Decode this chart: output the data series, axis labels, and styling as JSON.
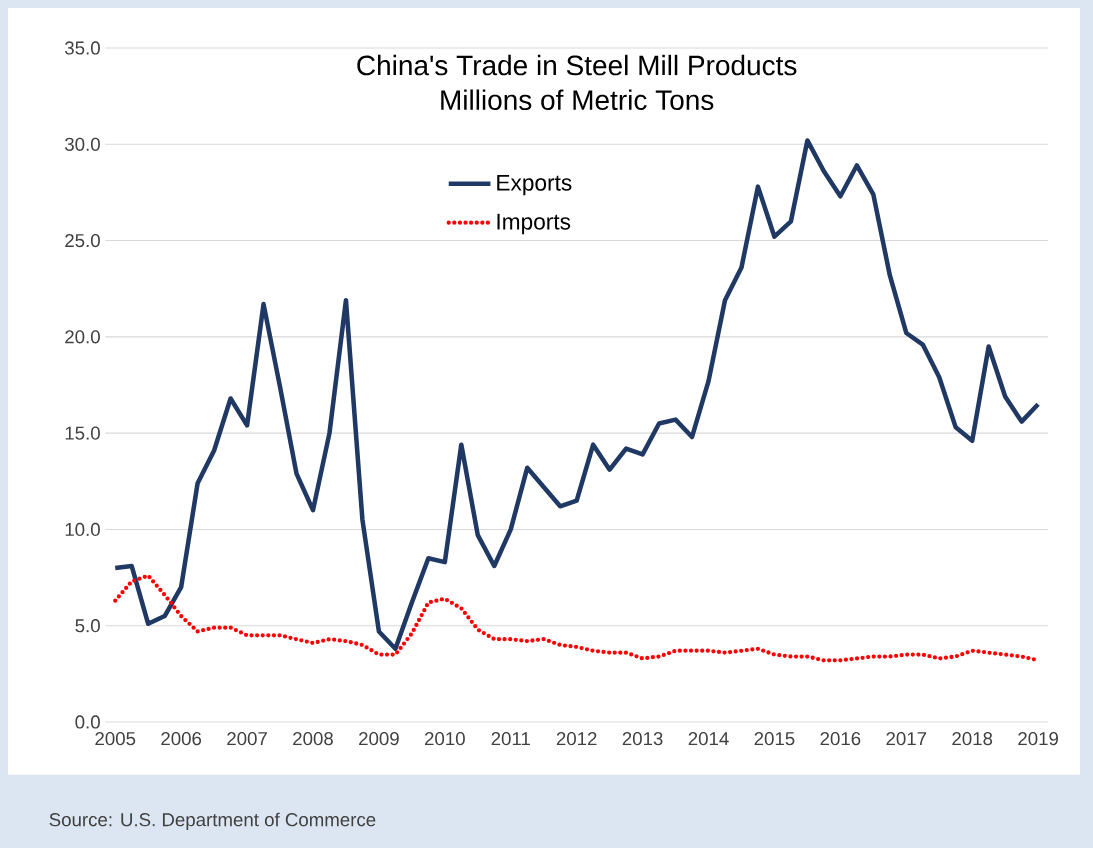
{
  "chart_data": {
    "type": "line",
    "title": "China's Trade in Steel Mill Products",
    "subtitle": "Millions of Metric Tons",
    "x": [
      2005,
      2005.25,
      2005.5,
      2005.75,
      2006,
      2006.25,
      2006.5,
      2006.75,
      2007,
      2007.25,
      2007.5,
      2007.75,
      2008,
      2008.25,
      2008.5,
      2008.75,
      2009,
      2009.25,
      2009.5,
      2009.75,
      2010,
      2010.25,
      2010.5,
      2010.75,
      2011,
      2011.25,
      2011.5,
      2011.75,
      2012,
      2012.25,
      2012.5,
      2012.75,
      2013,
      2013.25,
      2013.5,
      2013.75,
      2014,
      2014.25,
      2014.5,
      2014.75,
      2015,
      2015.25,
      2015.5,
      2015.75,
      2016,
      2016.25,
      2016.5,
      2016.75,
      2017,
      2017.25,
      2017.5,
      2017.75,
      2018,
      2018.25,
      2018.5,
      2018.75,
      2019
    ],
    "series": [
      {
        "name": "Exports",
        "color": "#1f3864",
        "line_style": "solid",
        "values": [
          8.0,
          8.1,
          5.1,
          5.5,
          7.0,
          12.4,
          14.1,
          16.8,
          15.4,
          21.7,
          17.4,
          12.9,
          11.0,
          15.0,
          21.9,
          10.5,
          4.7,
          3.8,
          6.2,
          8.5,
          8.3,
          14.4,
          9.7,
          8.1,
          10.0,
          13.2,
          12.2,
          11.2,
          11.5,
          14.4,
          13.1,
          14.2,
          13.9,
          15.5,
          15.7,
          14.8,
          17.7,
          21.9,
          23.6,
          27.8,
          25.2,
          26.0,
          30.2,
          28.6,
          27.3,
          28.9,
          27.4,
          23.2,
          20.2,
          19.6,
          17.9,
          15.3,
          14.6,
          19.5,
          16.9,
          15.6,
          16.5
        ]
      },
      {
        "name": "Imports",
        "color": "#ff0000",
        "line_style": "dotted",
        "values": [
          6.3,
          7.3,
          7.6,
          6.6,
          5.5,
          4.7,
          4.9,
          4.9,
          4.5,
          4.5,
          4.5,
          4.3,
          4.1,
          4.3,
          4.2,
          4.0,
          3.5,
          3.5,
          4.6,
          6.2,
          6.4,
          5.9,
          4.8,
          4.3,
          4.3,
          4.2,
          4.3,
          4.0,
          3.9,
          3.7,
          3.6,
          3.6,
          3.3,
          3.4,
          3.7,
          3.7,
          3.7,
          3.6,
          3.7,
          3.8,
          3.5,
          3.4,
          3.4,
          3.2,
          3.2,
          3.3,
          3.4,
          3.4,
          3.5,
          3.5,
          3.3,
          3.4,
          3.7,
          3.6,
          3.5,
          3.4,
          3.2
        ]
      }
    ],
    "xlim": [
      2004.85,
      2019.15
    ],
    "xticks": [
      2005,
      2006,
      2007,
      2008,
      2009,
      2010,
      2011,
      2012,
      2013,
      2014,
      2015,
      2016,
      2017,
      2018,
      2019
    ],
    "ylim": [
      0,
      35
    ],
    "yticks": [
      {
        "value": 0,
        "label": "0.0"
      },
      {
        "value": 5,
        "label": "5.0"
      },
      {
        "value": 10,
        "label": "10.0"
      },
      {
        "value": 15,
        "label": "15.0"
      },
      {
        "value": 20,
        "label": "20.0"
      },
      {
        "value": 25,
        "label": "25.0"
      },
      {
        "value": 30,
        "label": "30.0"
      },
      {
        "value": 35,
        "label": "35.0"
      }
    ],
    "grid": "y",
    "legend": "top",
    "marker": "none",
    "annotations": [
      "Source: U.S. Department of Commerce"
    ]
  }
}
